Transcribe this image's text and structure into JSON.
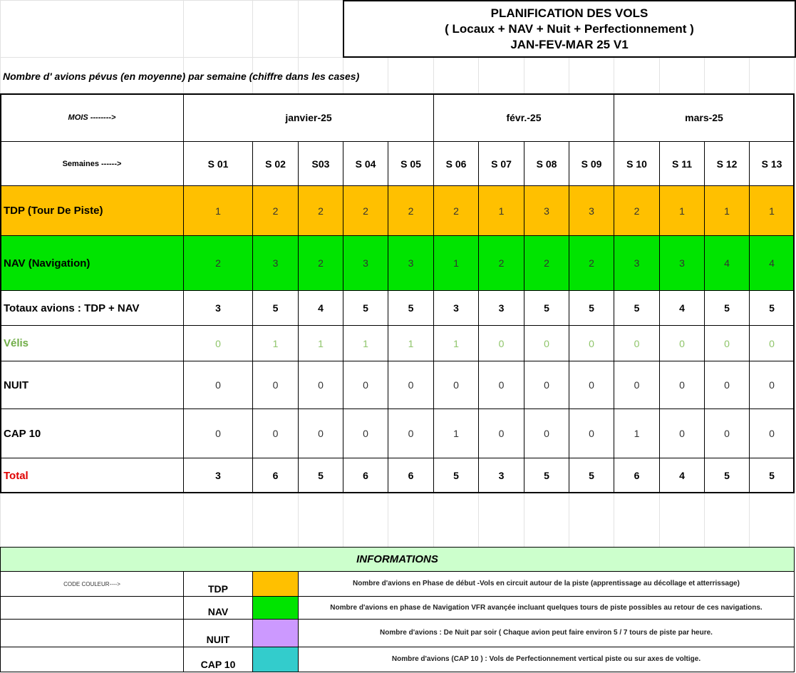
{
  "header": {
    "title_lines": [
      "PLANIFICATION DES VOLS",
      "( Locaux + NAV +  Nuit  +  Perfectionnement )",
      "JAN-FEV-MAR  25     V1"
    ],
    "subtitle": "Nombre d' avions  pévus (en moyenne)  par   semaine (chiffre dans les cases)"
  },
  "table": {
    "month_label": "MOIS -------->",
    "months": [
      "janvier-25",
      "févr.-25",
      "mars-25"
    ],
    "week_label": "Semaines ------>",
    "weeks": [
      "S 01",
      "S 02",
      "S03",
      "S 04",
      "S 05",
      "S 06",
      "S 07",
      "S 08",
      "S 09",
      "S 10",
      "S 11",
      "S 12",
      "S 13"
    ],
    "rows": [
      {
        "label": "TDP  (Tour De Piste)",
        "values": [
          1,
          2,
          2,
          2,
          2,
          2,
          1,
          3,
          3,
          2,
          1,
          1,
          1
        ]
      },
      {
        "label": "NAV  (Navigation)",
        "values": [
          2,
          3,
          2,
          3,
          3,
          1,
          2,
          2,
          2,
          3,
          3,
          4,
          4
        ]
      },
      {
        "label": "Totaux avions :   TDP + NAV",
        "values": [
          3,
          5,
          4,
          5,
          5,
          3,
          3,
          5,
          5,
          5,
          4,
          5,
          5
        ]
      },
      {
        "label": "Vélis",
        "values": [
          0,
          1,
          1,
          1,
          1,
          1,
          0,
          0,
          0,
          0,
          0,
          0,
          0
        ]
      },
      {
        "label": "NUIT",
        "values": [
          0,
          0,
          0,
          0,
          0,
          0,
          0,
          0,
          0,
          0,
          0,
          0,
          0
        ]
      },
      {
        "label": "CAP 10",
        "values": [
          0,
          0,
          0,
          0,
          0,
          1,
          0,
          0,
          0,
          1,
          0,
          0,
          0
        ]
      },
      {
        "label": "Total",
        "values": [
          3,
          6,
          5,
          6,
          6,
          5,
          3,
          5,
          5,
          6,
          4,
          5,
          5
        ]
      }
    ]
  },
  "info": {
    "title": "INFORMATIONS",
    "code_label": "CODE COULEUR---->",
    "items": [
      {
        "name": "TDP",
        "description": "Nombre d'avions en  Phase de début  -Vols en circuit autour  de la piste (apprentissage au décollage et atterrissage)"
      },
      {
        "name": "NAV",
        "description": "Nombre d'avions en phase de Navigation VFR avançée  incluant  quelques  tours de piste possibles au retour de ces navigations."
      },
      {
        "name": "NUIT",
        "description": "Nombre d'avions  :  De Nuit  par soir     ( Chaque avion peut faire  environ 5 / 7 tours de piste par heure."
      },
      {
        "name": "CAP 10",
        "description": "Nombre d'avions (CAP 10 ) :  Vols de  Perfectionnement vertical piste ou sur axes de voltige."
      }
    ]
  }
}
